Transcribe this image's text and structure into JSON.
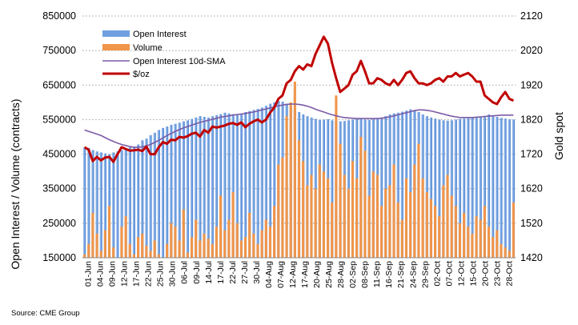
{
  "chart_data": {
    "type": "bar",
    "title": "",
    "source": "Source: CME Group",
    "ylabel_left": "Open Interest / Volume (contracts)",
    "ylabel_right": "Gold spot",
    "ylim_left": [
      150000,
      850000
    ],
    "yticks_left": [
      "150000",
      "250000",
      "350000",
      "450000",
      "550000",
      "650000",
      "750000",
      "850000"
    ],
    "yticks_left_values": [
      150000,
      250000,
      350000,
      450000,
      550000,
      650000,
      750000,
      850000
    ],
    "ylim_right": [
      1420,
      2120
    ],
    "yticks_right": [
      "1420",
      "1520",
      "1620",
      "1720",
      "1820",
      "1920",
      "2020",
      "2120"
    ],
    "yticks_right_values": [
      1420,
      1520,
      1620,
      1720,
      1820,
      1920,
      2020,
      2120
    ],
    "grid": "horizontal dotted",
    "legend_position": "top-left",
    "x_labels": [
      "01-Jun",
      "04-Jun",
      "09-Jun",
      "12-Jun",
      "17-Jun",
      "22-Jun",
      "25-Jun",
      "30-Jun",
      "06-Jul",
      "09-Jul",
      "14-Jul",
      "17-Jul",
      "22-Jul",
      "27-Jul",
      "30-Jul",
      "04-Aug",
      "07-Aug",
      "12-Aug",
      "17-Aug",
      "20-Aug",
      "25-Aug",
      "28-Aug",
      "02-Sep",
      "08-Sep",
      "11-Sep",
      "16-Sep",
      "21-Sep",
      "24-Sep",
      "29-Sep",
      "02-Oct",
      "07-Oct",
      "12-Oct",
      "15-Oct",
      "20-Oct",
      "23-Oct",
      "28-Oct"
    ],
    "series": [
      {
        "name": "Open Interest",
        "type": "bar",
        "axis": "left",
        "color": "#6f9fe0",
        "values": [
          470000,
          468000,
          462000,
          458000,
          455000,
          452000,
          450000,
          455000,
          458000,
          462000,
          465000,
          470000,
          472000,
          478000,
          490000,
          495000,
          505000,
          512000,
          520000,
          526000,
          530000,
          535000,
          538000,
          541000,
          545000,
          548000,
          552000,
          556000,
          560000,
          558000,
          556000,
          560000,
          563000,
          566000,
          570000,
          568000,
          566000,
          565000,
          568000,
          572000,
          575000,
          578000,
          581000,
          585000,
          590000,
          596000,
          600000,
          604000,
          602000,
          596000,
          588000,
          580000,
          572000,
          565000,
          560000,
          556000,
          552000,
          549000,
          550000,
          551000,
          548000,
          546000,
          545000,
          546000,
          548000,
          550000,
          551000,
          552000,
          550000,
          549000,
          551000,
          553000,
          556000,
          560000,
          565000,
          568000,
          570000,
          573000,
          576000,
          580000,
          578000,
          572000,
          565000,
          560000,
          556000,
          553000,
          550000,
          548000,
          547000,
          548000,
          550000,
          552000,
          553000,
          554000,
          555000,
          556000,
          557000,
          560000,
          565000,
          562000,
          558000,
          555000,
          553000,
          551000,
          550000
        ]
      },
      {
        "name": "Volume",
        "type": "bar",
        "axis": "left",
        "color": "#f0954a",
        "values": [
          160000,
          190000,
          280000,
          220000,
          170000,
          230000,
          300000,
          180000,
          150000,
          240000,
          270000,
          190000,
          160000,
          210000,
          220000,
          185000,
          170000,
          200000,
          160000,
          150000,
          190000,
          250000,
          240000,
          200000,
          290000,
          165000,
          210000,
          260000,
          200000,
          220000,
          205000,
          190000,
          240000,
          330000,
          230000,
          260000,
          340000,
          250000,
          200000,
          210000,
          280000,
          220000,
          190000,
          230000,
          260000,
          240000,
          300000,
          420000,
          440000,
          560000,
          600000,
          660000,
          490000,
          430000,
          360000,
          390000,
          350000,
          420000,
          400000,
          380000,
          310000,
          620000,
          480000,
          390000,
          350000,
          430000,
          380000,
          500000,
          460000,
          330000,
          400000,
          390000,
          300000,
          350000,
          360000,
          420000,
          310000,
          260000,
          380000,
          340000,
          420000,
          480000,
          380000,
          340000,
          320000,
          300000,
          270000,
          360000,
          390000,
          330000,
          300000,
          250000,
          280000,
          240000,
          220000,
          270000,
          260000,
          300000,
          240000,
          210000,
          230000,
          190000,
          180000,
          170000,
          310000
        ]
      },
      {
        "name": "Open Interest 10d-SMA",
        "type": "line",
        "axis": "left",
        "color": "#7b5aa6",
        "values": [
          520000,
          516000,
          512000,
          508000,
          504000,
          498000,
          492000,
          487000,
          482000,
          478000,
          475000,
          472000,
          470000,
          470000,
          471000,
          474000,
          478000,
          484000,
          490000,
          497000,
          504000,
          510000,
          516000,
          521000,
          526000,
          530000,
          534000,
          538000,
          542000,
          545000,
          548000,
          551000,
          554000,
          557000,
          559000,
          561000,
          563000,
          565000,
          566000,
          568000,
          570000,
          572000,
          575000,
          578000,
          581000,
          584000,
          587000,
          590000,
          592000,
          594000,
          595000,
          595000,
          594000,
          592000,
          589000,
          585000,
          580000,
          576000,
          572000,
          568000,
          564000,
          561000,
          558000,
          556000,
          555000,
          554000,
          553000,
          553000,
          553000,
          553000,
          553000,
          553000,
          554000,
          556000,
          558000,
          561000,
          564000,
          567000,
          570000,
          573000,
          576000,
          578000,
          578000,
          577000,
          575000,
          572000,
          569000,
          566000,
          563000,
          560000,
          558000,
          556000,
          556000,
          556000,
          556000,
          557000,
          558000,
          559000,
          560000,
          561000,
          562000,
          563000,
          563000,
          563000,
          563000
        ]
      },
      {
        "name": "$/oz",
        "type": "line",
        "axis": "right",
        "color": "#c00000",
        "values": [
          1740,
          1733,
          1700,
          1712,
          1702,
          1710,
          1712,
          1698,
          1720,
          1740,
          1735,
          1730,
          1731,
          1733,
          1729,
          1742,
          1720,
          1720,
          1740,
          1755,
          1750,
          1762,
          1760,
          1770,
          1768,
          1772,
          1779,
          1782,
          1771,
          1790,
          1782,
          1800,
          1797,
          1800,
          1803,
          1808,
          1810,
          1805,
          1812,
          1798,
          1808,
          1815,
          1820,
          1812,
          1820,
          1840,
          1855,
          1880,
          1890,
          1925,
          1935,
          1960,
          1975,
          1965,
          1980,
          1975,
          2010,
          2035,
          2060,
          2040,
          1985,
          1940,
          1900,
          1910,
          1920,
          1950,
          1960,
          1990,
          1960,
          1925,
          1925,
          1940,
          1935,
          1925,
          1920,
          1935,
          1920,
          1935,
          1955,
          1960,
          1940,
          1925,
          1925,
          1920,
          1925,
          1935,
          1940,
          1930,
          1945,
          1945,
          1955,
          1945,
          1950,
          1955,
          1945,
          1930,
          1930,
          1890,
          1880,
          1870,
          1865,
          1885,
          1900,
          1880,
          1875
        ]
      }
    ]
  }
}
